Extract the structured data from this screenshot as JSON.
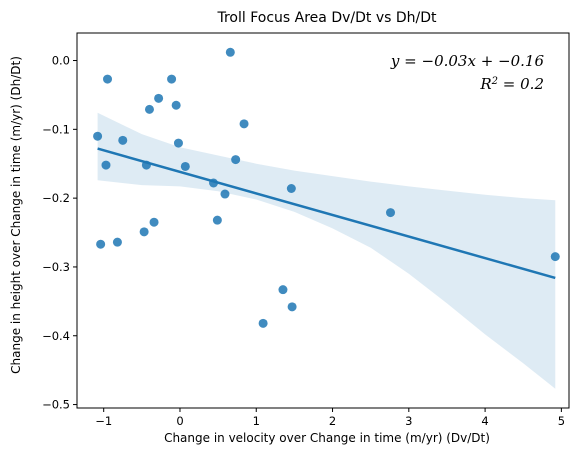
{
  "chart_data": {
    "type": "scatter",
    "title": "Troll Focus Area Dv/Dt  vs  Dh/Dt",
    "xlabel": "Change in velocity over Change in time (m/yr) (Dv/Dt)",
    "ylabel": "Change in height over Change in time (m/yr) (Dh/Dt)",
    "xlim": [
      -1.35,
      5.1
    ],
    "ylim": [
      -0.505,
      0.04
    ],
    "xticks": [
      -1,
      0,
      1,
      2,
      3,
      4,
      5
    ],
    "yticks": [
      -0.5,
      -0.4,
      -0.3,
      -0.2,
      -0.1,
      0.0
    ],
    "xtick_labels": [
      "−1",
      "0",
      "1",
      "2",
      "3",
      "4",
      "5"
    ],
    "ytick_labels": [
      "−0.5",
      "−0.4",
      "−0.3",
      "−0.2",
      "−0.1",
      "0.0"
    ],
    "grid": false,
    "points": [
      {
        "x": -1.08,
        "y": -0.11
      },
      {
        "x": -1.04,
        "y": -0.267
      },
      {
        "x": -0.97,
        "y": -0.152
      },
      {
        "x": -0.95,
        "y": -0.027
      },
      {
        "x": -0.82,
        "y": -0.264
      },
      {
        "x": -0.75,
        "y": -0.116
      },
      {
        "x": -0.47,
        "y": -0.249
      },
      {
        "x": -0.44,
        "y": -0.152
      },
      {
        "x": -0.4,
        "y": -0.071
      },
      {
        "x": -0.34,
        "y": -0.235
      },
      {
        "x": -0.28,
        "y": -0.055
      },
      {
        "x": -0.11,
        "y": -0.027
      },
      {
        "x": -0.05,
        "y": -0.065
      },
      {
        "x": -0.02,
        "y": -0.12
      },
      {
        "x": 0.07,
        "y": -0.154
      },
      {
        "x": 0.44,
        "y": -0.178
      },
      {
        "x": 0.49,
        "y": -0.232
      },
      {
        "x": 0.59,
        "y": -0.194
      },
      {
        "x": 0.66,
        "y": 0.012
      },
      {
        "x": 0.73,
        "y": -0.144
      },
      {
        "x": 0.84,
        "y": -0.092
      },
      {
        "x": 1.09,
        "y": -0.382
      },
      {
        "x": 1.35,
        "y": -0.333
      },
      {
        "x": 1.46,
        "y": -0.186
      },
      {
        "x": 1.47,
        "y": -0.358
      },
      {
        "x": 2.76,
        "y": -0.221
      },
      {
        "x": 4.92,
        "y": -0.285
      }
    ],
    "regression": {
      "x_start": -1.08,
      "x_end": 4.92,
      "y_start": -0.128,
      "y_end": -0.316
    },
    "confidence_band": {
      "x": [
        -1.08,
        -0.5,
        0.0,
        0.5,
        1.0,
        1.5,
        2.0,
        2.5,
        3.0,
        3.5,
        4.0,
        4.5,
        4.92
      ],
      "upper": [
        -0.076,
        -0.107,
        -0.126,
        -0.138,
        -0.15,
        -0.16,
        -0.168,
        -0.176,
        -0.183,
        -0.189,
        -0.195,
        -0.2,
        -0.203
      ],
      "lower": [
        -0.174,
        -0.181,
        -0.183,
        -0.19,
        -0.202,
        -0.22,
        -0.244,
        -0.272,
        -0.31,
        -0.353,
        -0.398,
        -0.44,
        -0.477
      ]
    },
    "annotation": {
      "equation": "y = −0.03x + −0.16",
      "r2_prefix": "R",
      "r2_sup": "2",
      "r2_value": " = 0.2",
      "placement": "top-right"
    },
    "colors": {
      "points": "#1f77b4",
      "line": "#1f77b4",
      "band": "#1f77b4"
    }
  }
}
